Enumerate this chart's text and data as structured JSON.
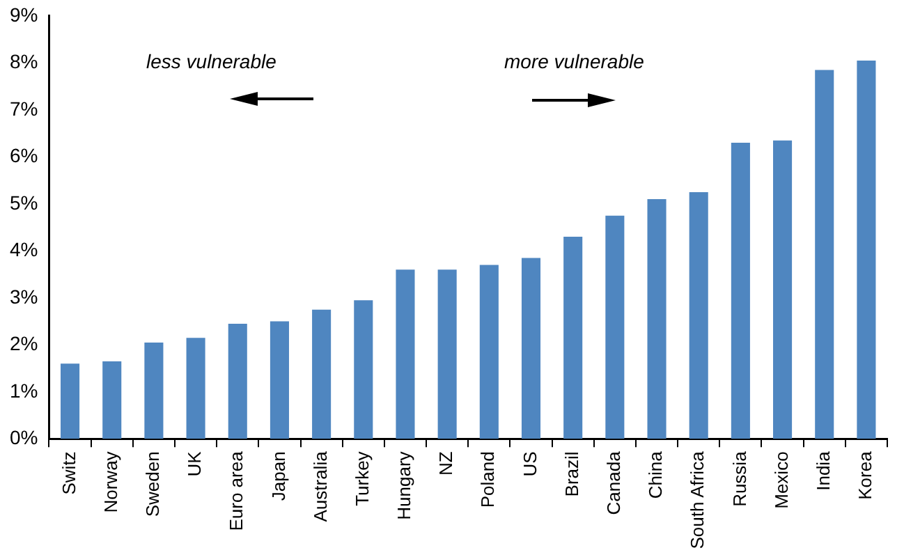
{
  "chart_data": {
    "type": "bar",
    "categories": [
      "Switz",
      "Norway",
      "Sweden",
      "UK",
      "Euro area",
      "Japan",
      "Australia",
      "Turkey",
      "Hungary",
      "NZ",
      "Poland",
      "US",
      "Brazil",
      "Canada",
      "China",
      "South Africa",
      "Russia",
      "Mexico",
      "India",
      "Korea"
    ],
    "values": [
      1.6,
      1.65,
      2.05,
      2.15,
      2.45,
      2.5,
      2.75,
      2.95,
      3.6,
      3.6,
      3.7,
      3.85,
      4.3,
      4.75,
      5.1,
      5.25,
      6.3,
      6.35,
      7.85,
      8.05
    ],
    "color": "#4f86c0",
    "ylim": [
      0,
      9
    ],
    "yticks": [
      {
        "value": 0,
        "label": "0%"
      },
      {
        "value": 1,
        "label": "1%"
      },
      {
        "value": 2,
        "label": "2%"
      },
      {
        "value": 3,
        "label": "3%"
      },
      {
        "value": 4,
        "label": "4%"
      },
      {
        "value": 5,
        "label": "5%"
      },
      {
        "value": 6,
        "label": "6%"
      },
      {
        "value": 7,
        "label": "7%"
      },
      {
        "value": 8,
        "label": "8%"
      },
      {
        "value": 9,
        "label": "9%"
      }
    ],
    "annotations": [
      "less vulnerable",
      "more vulnerable"
    ],
    "grid": false,
    "legend": false
  }
}
